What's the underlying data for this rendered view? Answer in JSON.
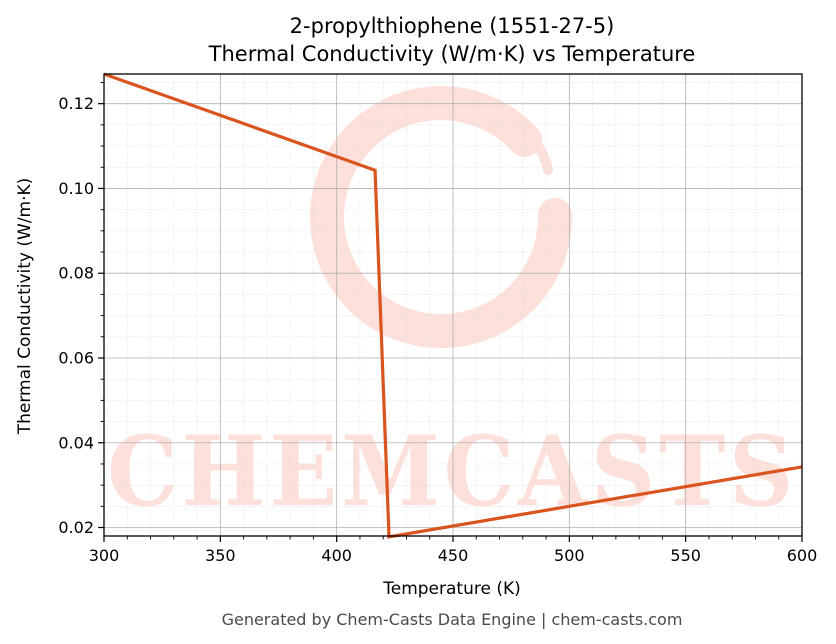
{
  "chart_data": {
    "type": "line",
    "title": "2-propylthiophene (1551-27-5)",
    "subtitle": "Thermal Conductivity (W/m·K) vs Temperature",
    "xlabel": "Temperature (K)",
    "ylabel": "Thermal Conductivity (W/m·K)",
    "xlim": [
      300,
      600
    ],
    "ylim": [
      0.018,
      0.127
    ],
    "xticks": [
      300,
      350,
      400,
      450,
      500,
      550,
      600
    ],
    "yticks": [
      0.02,
      0.04,
      0.06,
      0.08,
      0.1,
      0.12
    ],
    "ytick_labels": [
      "0.02",
      "0.04",
      "0.06",
      "0.08",
      "0.10",
      "0.12"
    ],
    "grid": true,
    "series": [
      {
        "color": "#d9541e",
        "x": [
          300,
          416.5,
          422.5,
          600
        ],
        "y": [
          0.127,
          0.1043,
          0.0178,
          0.0343
        ]
      }
    ]
  },
  "watermark": {
    "text": "CHEMCASTS",
    "color": "#fde0da"
  },
  "footer": {
    "text": "Generated by Chem-Casts Data Engine | chem-casts.com"
  }
}
